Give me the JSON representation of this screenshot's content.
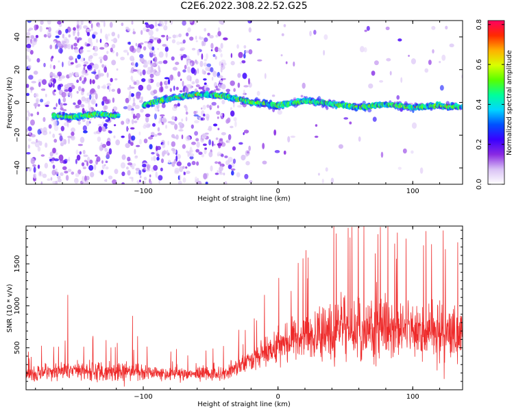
{
  "title": "C2E6.2022.308.22.52.G25",
  "chart_data": [
    {
      "type": "heatmap",
      "panel": "spectrogram",
      "xlabel": "Height of straight line (km)",
      "ylabel": "Frequency (Hz)",
      "xlim": [
        -187,
        137
      ],
      "ylim": [
        -50,
        50
      ],
      "xticks": [
        -100,
        0,
        100
      ],
      "yticks": [
        -40,
        -20,
        0,
        20,
        40
      ],
      "colorbar": {
        "label": "Normalized spectral amplitude",
        "range": [
          0.0,
          0.82
        ],
        "ticks": [
          "0.0",
          "0.2",
          "0.4",
          "0.6",
          "0.8"
        ],
        "colormap": [
          "#ffffff",
          "#d9c2f5",
          "#8a2be2",
          "#3a00ff",
          "#0050ff",
          "#00d6ff",
          "#00ff9a",
          "#58ff00",
          "#d9ff00",
          "#ffb000",
          "#ff2a00",
          "#ff0060"
        ]
      },
      "ridge": {
        "description_points": [
          {
            "x": -167,
            "y": -8
          },
          {
            "x": -150,
            "y": -9
          },
          {
            "x": -135,
            "y": -7
          },
          {
            "x": -120,
            "y": -8
          },
          {
            "x": -90,
            "y": 1
          },
          {
            "x": -60,
            "y": 5
          },
          {
            "x": -40,
            "y": 4
          },
          {
            "x": -20,
            "y": 0
          },
          {
            "x": 0,
            "y": -2
          },
          {
            "x": 20,
            "y": 1
          },
          {
            "x": 40,
            "y": -1
          },
          {
            "x": 60,
            "y": -3
          },
          {
            "x": 80,
            "y": -1
          },
          {
            "x": 100,
            "y": -3
          },
          {
            "x": 120,
            "y": -2
          },
          {
            "x": 135,
            "y": -3
          }
        ]
      }
    },
    {
      "type": "line",
      "panel": "snr",
      "xlabel": "Height of straight line (km)",
      "ylabel": "SNR (10 * v/v)",
      "xlim": [
        -187,
        137
      ],
      "ylim": [
        0,
        1950
      ],
      "xticks": [
        -100,
        0,
        100
      ],
      "yticks": [
        500,
        1000,
        1500
      ],
      "color": "#ee2a2a",
      "envelope": [
        {
          "x": -187,
          "mean": 170,
          "amp": 130
        },
        {
          "x": -160,
          "mean": 230,
          "amp": 220
        },
        {
          "x": -140,
          "mean": 220,
          "amp": 200
        },
        {
          "x": -110,
          "mean": 210,
          "amp": 220
        },
        {
          "x": -80,
          "mean": 200,
          "amp": 160
        },
        {
          "x": -40,
          "mean": 190,
          "amp": 170
        },
        {
          "x": -25,
          "mean": 310,
          "amp": 260
        },
        {
          "x": 0,
          "mean": 520,
          "amp": 420
        },
        {
          "x": 20,
          "mean": 650,
          "amp": 520
        },
        {
          "x": 50,
          "mean": 720,
          "amp": 650
        },
        {
          "x": 80,
          "mean": 740,
          "amp": 700
        },
        {
          "x": 110,
          "mean": 700,
          "amp": 650
        },
        {
          "x": 137,
          "mean": 660,
          "amp": 600
        }
      ],
      "spikes": [
        {
          "x": -156,
          "y": 1130
        },
        {
          "x": -108,
          "y": 880
        },
        {
          "x": -10,
          "y": 1130
        },
        {
          "x": 15,
          "y": 1510
        },
        {
          "x": 55,
          "y": 1940
        },
        {
          "x": 76,
          "y": 1940
        },
        {
          "x": 95,
          "y": 1800
        }
      ]
    }
  ]
}
